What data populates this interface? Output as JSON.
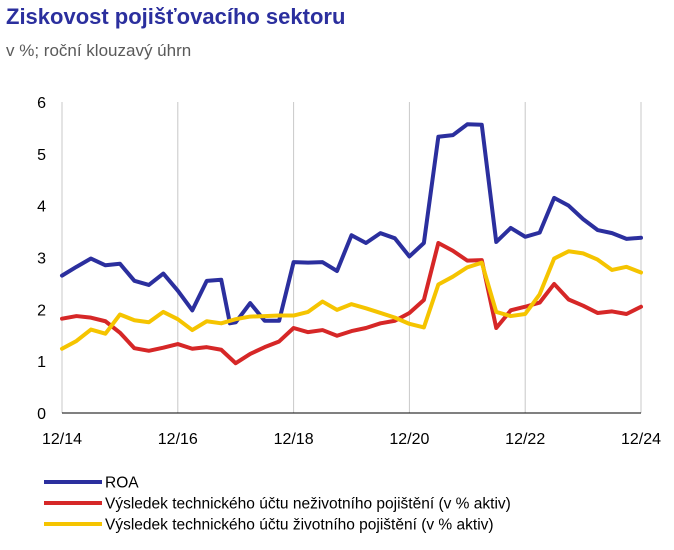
{
  "title": "Ziskovost pojišťovacího sektoru",
  "subtitle": "v %; roční klouzavý úhrn",
  "chart_data": {
    "type": "line",
    "ylim": [
      0,
      6
    ],
    "yticks": [
      "0",
      "1",
      "2",
      "3",
      "4",
      "5",
      "6"
    ],
    "xlim": [
      0,
      40
    ],
    "xticks": [
      {
        "x": 0,
        "label": "12/14"
      },
      {
        "x": 8,
        "label": "12/16"
      },
      {
        "x": 16,
        "label": "12/18"
      },
      {
        "x": 24,
        "label": "12/20"
      },
      {
        "x": 32,
        "label": "12/22"
      },
      {
        "x": 40,
        "label": "12/24"
      }
    ],
    "grid": {
      "vertical": true,
      "horizontal": false
    },
    "legend_position": "bottom-left",
    "series": [
      {
        "name": "ROA",
        "color": "#2b2f9e",
        "points": [
          [
            0,
            2.65
          ],
          [
            1,
            2.82
          ],
          [
            2,
            2.98
          ],
          [
            3,
            2.85
          ],
          [
            4,
            2.88
          ],
          [
            5,
            2.55
          ],
          [
            6,
            2.47
          ],
          [
            7,
            2.69
          ],
          [
            8,
            2.36
          ],
          [
            9,
            1.98
          ],
          [
            10,
            2.55
          ],
          [
            11,
            2.57
          ],
          [
            11.6,
            1.73
          ],
          [
            12,
            1.75
          ],
          [
            13,
            2.12
          ],
          [
            14,
            1.78
          ],
          [
            15,
            1.78
          ],
          [
            16,
            2.91
          ],
          [
            17,
            2.9
          ],
          [
            18,
            2.91
          ],
          [
            19,
            2.74
          ],
          [
            20,
            3.43
          ],
          [
            21,
            3.28
          ],
          [
            22,
            3.47
          ],
          [
            23,
            3.37
          ],
          [
            24,
            3.02
          ],
          [
            25,
            3.28
          ],
          [
            26,
            5.33
          ],
          [
            27,
            5.36
          ],
          [
            28,
            5.57
          ],
          [
            29,
            5.56
          ],
          [
            30,
            3.3
          ],
          [
            31,
            3.57
          ],
          [
            32,
            3.4
          ],
          [
            33,
            3.48
          ],
          [
            34,
            4.15
          ],
          [
            35,
            4.0
          ],
          [
            36,
            3.74
          ],
          [
            37,
            3.53
          ],
          [
            38,
            3.47
          ],
          [
            39,
            3.36
          ],
          [
            40,
            3.38
          ]
        ]
      },
      {
        "name": "Výsledek technického účtu neživotního pojištění (v % aktiv)",
        "color": "#d62727",
        "points": [
          [
            0,
            1.82
          ],
          [
            1,
            1.87
          ],
          [
            2,
            1.84
          ],
          [
            3,
            1.77
          ],
          [
            4,
            1.55
          ],
          [
            5,
            1.25
          ],
          [
            6,
            1.2
          ],
          [
            7,
            1.26
          ],
          [
            8,
            1.33
          ],
          [
            9,
            1.24
          ],
          [
            10,
            1.27
          ],
          [
            11,
            1.22
          ],
          [
            12,
            0.96
          ],
          [
            13,
            1.14
          ],
          [
            14,
            1.27
          ],
          [
            15,
            1.38
          ],
          [
            16,
            1.64
          ],
          [
            17,
            1.56
          ],
          [
            18,
            1.6
          ],
          [
            19,
            1.49
          ],
          [
            20,
            1.58
          ],
          [
            21,
            1.64
          ],
          [
            22,
            1.73
          ],
          [
            23,
            1.78
          ],
          [
            24,
            1.93
          ],
          [
            25,
            2.18
          ],
          [
            26,
            3.28
          ],
          [
            27,
            3.13
          ],
          [
            28,
            2.94
          ],
          [
            29,
            2.95
          ],
          [
            30,
            1.64
          ],
          [
            31,
            1.98
          ],
          [
            32,
            2.05
          ],
          [
            33,
            2.13
          ],
          [
            34,
            2.49
          ],
          [
            35,
            2.19
          ],
          [
            36,
            2.07
          ],
          [
            37,
            1.93
          ],
          [
            38,
            1.96
          ],
          [
            39,
            1.91
          ],
          [
            40,
            2.05
          ]
        ]
      },
      {
        "name": "Výsledek technického účtu životního pojištění (v % aktiv)",
        "color": "#f5c400",
        "points": [
          [
            0,
            1.24
          ],
          [
            1,
            1.39
          ],
          [
            2,
            1.61
          ],
          [
            3,
            1.53
          ],
          [
            4,
            1.9
          ],
          [
            5,
            1.79
          ],
          [
            6,
            1.75
          ],
          [
            7,
            1.95
          ],
          [
            8,
            1.81
          ],
          [
            9,
            1.6
          ],
          [
            10,
            1.77
          ],
          [
            11,
            1.73
          ],
          [
            12,
            1.81
          ],
          [
            13,
            1.86
          ],
          [
            14,
            1.87
          ],
          [
            15,
            1.88
          ],
          [
            16,
            1.88
          ],
          [
            17,
            1.95
          ],
          [
            18,
            2.15
          ],
          [
            19,
            1.99
          ],
          [
            20,
            2.1
          ],
          [
            21,
            2.02
          ],
          [
            22,
            1.93
          ],
          [
            23,
            1.84
          ],
          [
            24,
            1.72
          ],
          [
            25,
            1.65
          ],
          [
            26,
            2.48
          ],
          [
            27,
            2.63
          ],
          [
            28,
            2.81
          ],
          [
            29,
            2.9
          ],
          [
            30,
            1.95
          ],
          [
            31,
            1.87
          ],
          [
            32,
            1.91
          ],
          [
            33,
            2.29
          ],
          [
            34,
            2.98
          ],
          [
            35,
            3.12
          ],
          [
            36,
            3.08
          ],
          [
            37,
            2.96
          ],
          [
            38,
            2.76
          ],
          [
            39,
            2.82
          ],
          [
            40,
            2.71
          ]
        ]
      }
    ]
  }
}
